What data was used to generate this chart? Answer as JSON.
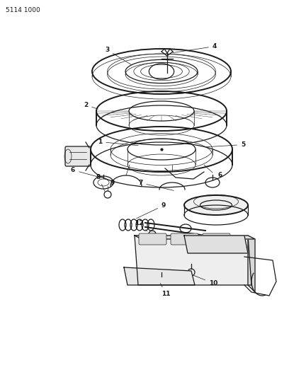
{
  "bg_color": "#ffffff",
  "line_color": "#1a1a1a",
  "part_number_label": "5114 1000",
  "label_fontsize": 6.5,
  "lw_main": 0.9,
  "lw_thick": 1.4,
  "lw_thin": 0.5,
  "lw_ultra": 0.3
}
